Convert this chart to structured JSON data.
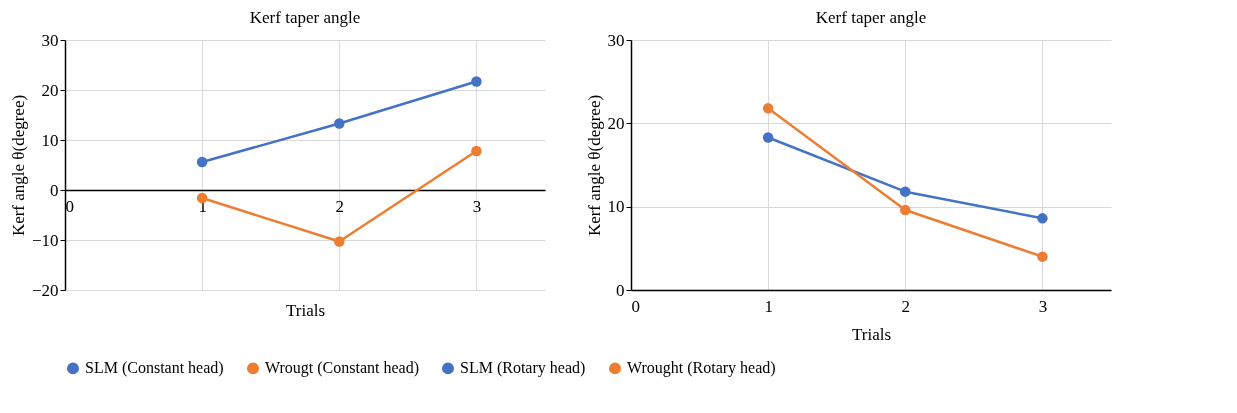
{
  "chart_data": [
    {
      "type": "line",
      "title": "Kerf taper angle",
      "xlabel": "Trials",
      "ylabel": "Kerf angle θ(degree)",
      "x": [
        1,
        2,
        3
      ],
      "xlim": [
        0,
        3.5
      ],
      "xticks": [
        0,
        1,
        2,
        3
      ],
      "ylim": [
        -20,
        30
      ],
      "yticks": [
        -20,
        -10,
        0,
        10,
        20,
        30
      ],
      "grid": true,
      "legend": "bottom",
      "marker": "circle",
      "line_style": "solid",
      "series": [
        {
          "name": "SLM (Constant head)",
          "color": "#4472c4",
          "values": [
            5.6,
            13.3,
            21.7
          ]
        },
        {
          "name": "Wrougt (Constant head)",
          "color": "#ed7d31",
          "values": [
            -1.6,
            -10.3,
            7.8
          ]
        }
      ]
    },
    {
      "type": "line",
      "title": "Kerf taper angle",
      "xlabel": "Trials",
      "ylabel": "Kerf angle θ(degree)",
      "x": [
        1,
        2,
        3
      ],
      "xlim": [
        0,
        3.5
      ],
      "xticks": [
        0,
        1,
        2,
        3
      ],
      "ylim": [
        0,
        30
      ],
      "yticks": [
        0,
        10,
        20,
        30
      ],
      "grid": true,
      "legend": "bottom",
      "marker": "circle",
      "line_style": "solid",
      "series": [
        {
          "name": "SLM (Rotary head)",
          "color": "#4472c4",
          "values": [
            18.3,
            11.8,
            8.6
          ]
        },
        {
          "name": "Wrought (Rotary head)",
          "color": "#ed7d31",
          "values": [
            21.8,
            9.6,
            4.0
          ]
        }
      ]
    }
  ]
}
